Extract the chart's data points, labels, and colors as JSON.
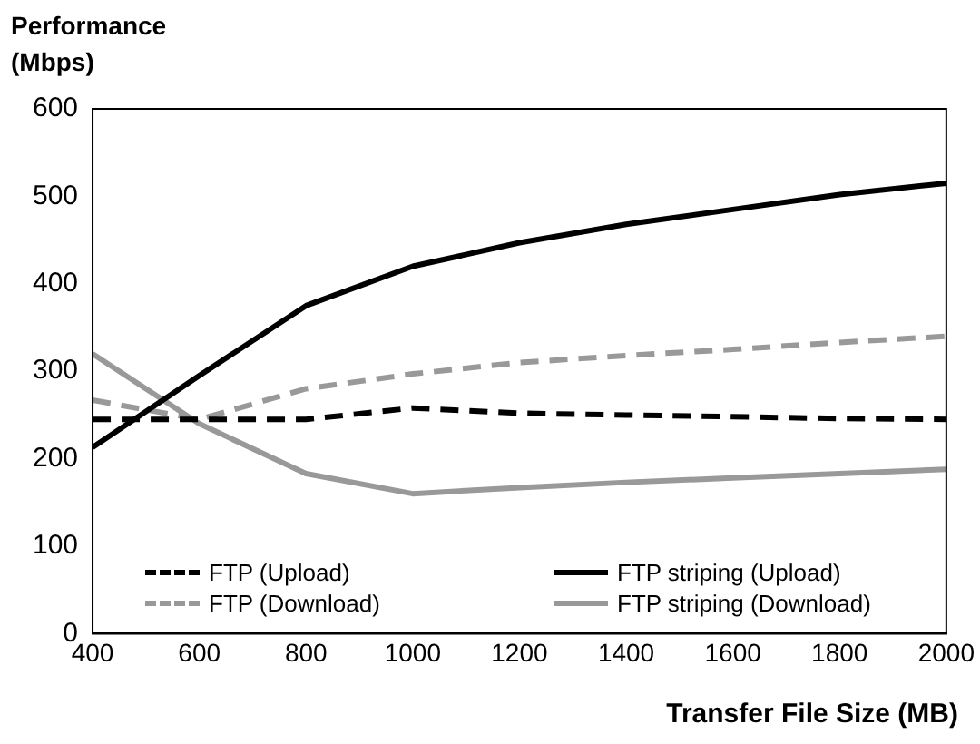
{
  "chart_data": {
    "type": "line",
    "ylabel": "Performance (Mbps)",
    "xlabel": "Transfer File Size  (MB)",
    "x": [
      400,
      600,
      800,
      1000,
      1200,
      1400,
      1600,
      1800,
      2000
    ],
    "xlim": [
      400,
      2000
    ],
    "xticks": [
      400,
      600,
      800,
      1000,
      1200,
      1400,
      1600,
      1800,
      2000
    ],
    "ylim": [
      0,
      600
    ],
    "yticks": [
      0,
      100,
      200,
      300,
      400,
      500,
      600
    ],
    "grid": false,
    "legend": "bottom",
    "marker": "none",
    "series": [
      {
        "name": "FTP (Upload)",
        "color": "#000000",
        "line_style": "dashed",
        "values": [
          245,
          245,
          245,
          258,
          252,
          250,
          248,
          246,
          245
        ]
      },
      {
        "name": "FTP striping (Upload)",
        "color": "#000000",
        "line_style": "solid",
        "values": [
          213,
          295,
          375,
          420,
          447,
          468,
          485,
          502,
          515
        ]
      },
      {
        "name": "FTP (Download)",
        "color": "#999999",
        "line_style": "dashed",
        "values": [
          267,
          245,
          280,
          297,
          310,
          318,
          325,
          333,
          340
        ]
      },
      {
        "name": "FTP striping (Download)",
        "color": "#999999",
        "line_style": "solid",
        "values": [
          320,
          240,
          183,
          160,
          167,
          173,
          178,
          183,
          188
        ]
      }
    ]
  }
}
